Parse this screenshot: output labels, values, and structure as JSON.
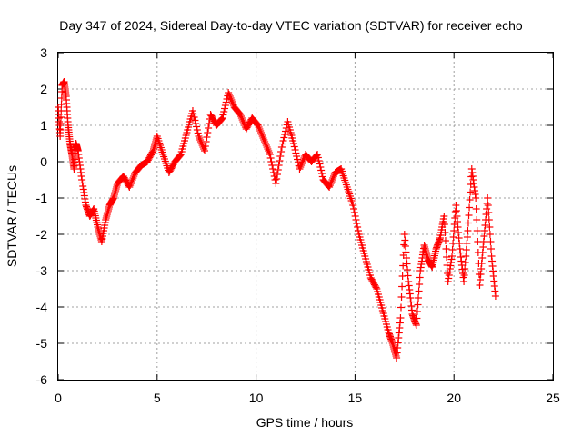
{
  "chart_data": {
    "type": "scatter",
    "title": "Day 347 of 2024, Sidereal Day-to-day VTEC variation (SDTVAR) for receiver echo",
    "xlabel": "GPS time / hours",
    "ylabel": "SDTVAR / TECUs",
    "xlim": [
      0,
      25
    ],
    "ylim": [
      -6,
      3
    ],
    "xticks": [
      "0",
      "5",
      "10",
      "15",
      "20",
      "25"
    ],
    "yticks": [
      "3",
      "2",
      "1",
      "0",
      "-1",
      "-2",
      "-3",
      "-4",
      "-5",
      "-6"
    ],
    "grid": true,
    "marker": "plus",
    "color": "#ff0000",
    "series": [
      {
        "name": "SDTVAR",
        "x": [
          0.0,
          0.1,
          0.2,
          0.3,
          0.4,
          0.5,
          0.6,
          0.7,
          0.8,
          0.9,
          1.0,
          1.2,
          1.4,
          1.6,
          1.8,
          2.0,
          2.2,
          2.4,
          2.6,
          2.8,
          3.0,
          3.3,
          3.6,
          3.9,
          4.2,
          4.5,
          4.8,
          5.0,
          5.3,
          5.6,
          5.9,
          6.2,
          6.5,
          6.8,
          7.1,
          7.4,
          7.7,
          8.0,
          8.3,
          8.6,
          8.9,
          9.2,
          9.5,
          9.8,
          10.1,
          10.4,
          10.7,
          11.0,
          11.3,
          11.6,
          11.9,
          12.2,
          12.5,
          12.8,
          13.1,
          13.4,
          13.7,
          14.0,
          14.3,
          14.6,
          14.9,
          15.2,
          15.5,
          15.8,
          16.1,
          16.4,
          16.7,
          16.9,
          17.1,
          17.3,
          17.5,
          17.7,
          17.9,
          18.1,
          18.3,
          18.5,
          18.7,
          18.9,
          19.1,
          19.3,
          19.5,
          19.7,
          19.9,
          20.1,
          20.3,
          20.5,
          20.7,
          20.9,
          21.1,
          21.3,
          21.5,
          21.7,
          21.9,
          22.1
        ],
        "y": [
          1.5,
          0.7,
          2.1,
          2.2,
          1.8,
          1.0,
          0.5,
          0.2,
          -0.2,
          0.5,
          0.3,
          -0.5,
          -1.2,
          -1.5,
          -1.3,
          -1.8,
          -2.2,
          -1.6,
          -1.2,
          -1.0,
          -0.6,
          -0.4,
          -0.7,
          -0.3,
          -0.1,
          0.0,
          0.3,
          0.7,
          0.2,
          -0.3,
          0.0,
          0.2,
          0.8,
          1.4,
          0.7,
          0.3,
          1.3,
          1.0,
          1.2,
          1.9,
          1.5,
          1.3,
          0.9,
          1.2,
          1.0,
          0.6,
          0.2,
          -0.6,
          0.4,
          1.1,
          0.5,
          -0.2,
          0.2,
          0.0,
          0.2,
          -0.5,
          -0.7,
          -0.3,
          -0.2,
          -0.7,
          -1.2,
          -2.0,
          -2.6,
          -3.2,
          -3.5,
          -4.1,
          -4.7,
          -5.0,
          -5.4,
          -4.3,
          -2.0,
          -3.3,
          -4.2,
          -4.5,
          -3.0,
          -2.3,
          -2.7,
          -2.9,
          -2.4,
          -2.1,
          -1.5,
          -3.3,
          -2.6,
          -1.2,
          -2.4,
          -3.3,
          -1.9,
          -0.2,
          -1.0,
          -3.4,
          -2.2,
          -1.0,
          -2.6,
          -3.7
        ]
      }
    ]
  }
}
